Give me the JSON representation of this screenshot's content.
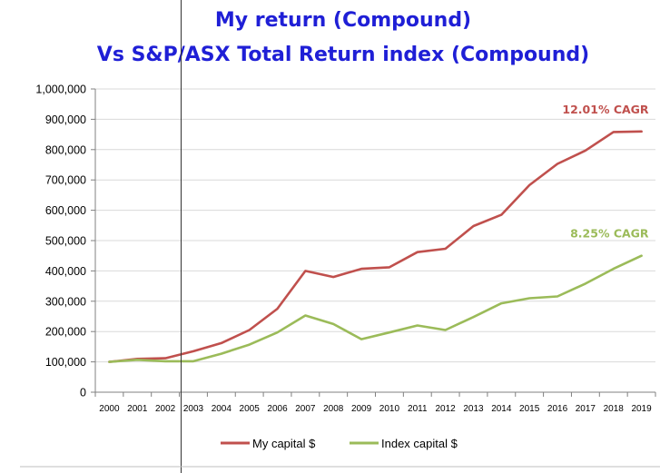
{
  "chart_data": {
    "type": "line",
    "title_line1": "My return (Compound)",
    "title_line2": "Vs S&P/ASX Total Return index (Compound)",
    "x": [
      "2000",
      "2001",
      "2002",
      "2003",
      "2004",
      "2005",
      "2006",
      "2007",
      "2008",
      "2009",
      "2010",
      "2011",
      "2012",
      "2013",
      "2014",
      "2015",
      "2016",
      "2017",
      "2018",
      "2019"
    ],
    "y_ticks": [
      "0",
      "100,000",
      "200,000",
      "300,000",
      "400,000",
      "500,000",
      "600,000",
      "700,000",
      "800,000",
      "900,000",
      "1,000,000"
    ],
    "ylim": [
      0,
      1000000
    ],
    "grid": true,
    "legend_position": "bottom",
    "series": [
      {
        "name": "My capital $",
        "color": "#c0504d",
        "values": [
          100000,
          110000,
          112000,
          135000,
          162000,
          205000,
          275000,
          400000,
          380000,
          407000,
          412000,
          462000,
          473000,
          548000,
          585000,
          683000,
          753000,
          797000,
          858000,
          860000
        ]
      },
      {
        "name": "Index capital $",
        "color": "#9bbb59",
        "values": [
          100000,
          107000,
          102000,
          102000,
          127000,
          157000,
          197000,
          253000,
          225000,
          175000,
          197000,
          220000,
          205000,
          248000,
          293000,
          310000,
          316000,
          358000,
          407000,
          450000
        ]
      }
    ],
    "annotations": [
      {
        "text": "12.01% CAGR",
        "color": "#c0504d",
        "series": 0
      },
      {
        "text": "8.25% CAGR",
        "color": "#9bbb59",
        "series": 1
      }
    ]
  }
}
